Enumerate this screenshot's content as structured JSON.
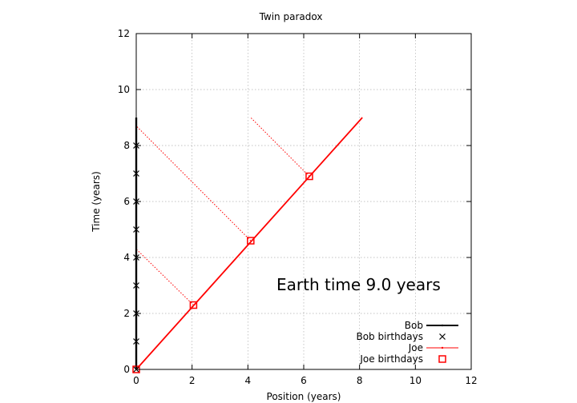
{
  "chart_data": {
    "type": "line",
    "title": "Twin paradox",
    "xlabel": "Position (years)",
    "ylabel": "Time (years)",
    "xlim": [
      0,
      12
    ],
    "ylim": [
      0,
      12
    ],
    "xticks": [
      0,
      2,
      4,
      6,
      8,
      10,
      12
    ],
    "yticks": [
      0,
      2,
      4,
      6,
      8,
      10,
      12
    ],
    "grid": true,
    "legend_position": "bottom-right",
    "annotation": "Earth time  9.0 years",
    "series": [
      {
        "name": "Bob",
        "type": "line",
        "color": "#000000",
        "points": [
          [
            0,
            0
          ],
          [
            0,
            9
          ]
        ]
      },
      {
        "name": "Bob birthdays",
        "type": "scatter",
        "marker": "x",
        "color": "#000000",
        "points": [
          [
            0,
            0
          ],
          [
            0,
            1
          ],
          [
            0,
            2
          ],
          [
            0,
            3
          ],
          [
            0,
            4
          ],
          [
            0,
            5
          ],
          [
            0,
            6
          ],
          [
            0,
            7
          ],
          [
            0,
            8
          ]
        ]
      },
      {
        "name": "Joe",
        "type": "line",
        "color": "#ff0000",
        "points": [
          [
            0,
            0
          ],
          [
            8.1,
            9.0
          ]
        ]
      },
      {
        "name": "Joe birthdays",
        "type": "scatter",
        "marker": "square",
        "color": "#ff0000",
        "points": [
          [
            0,
            0
          ],
          [
            2.05,
            2.3
          ],
          [
            4.1,
            4.6
          ],
          [
            6.2,
            6.9
          ]
        ]
      }
    ],
    "simultaneity_lines": [
      {
        "from": [
          2.05,
          2.3
        ],
        "to": [
          0,
          4.3
        ]
      },
      {
        "from": [
          4.1,
          4.6
        ],
        "to": [
          0,
          8.7
        ]
      },
      {
        "from": [
          6.2,
          6.9
        ],
        "to": [
          4.1,
          9.0
        ]
      }
    ]
  }
}
